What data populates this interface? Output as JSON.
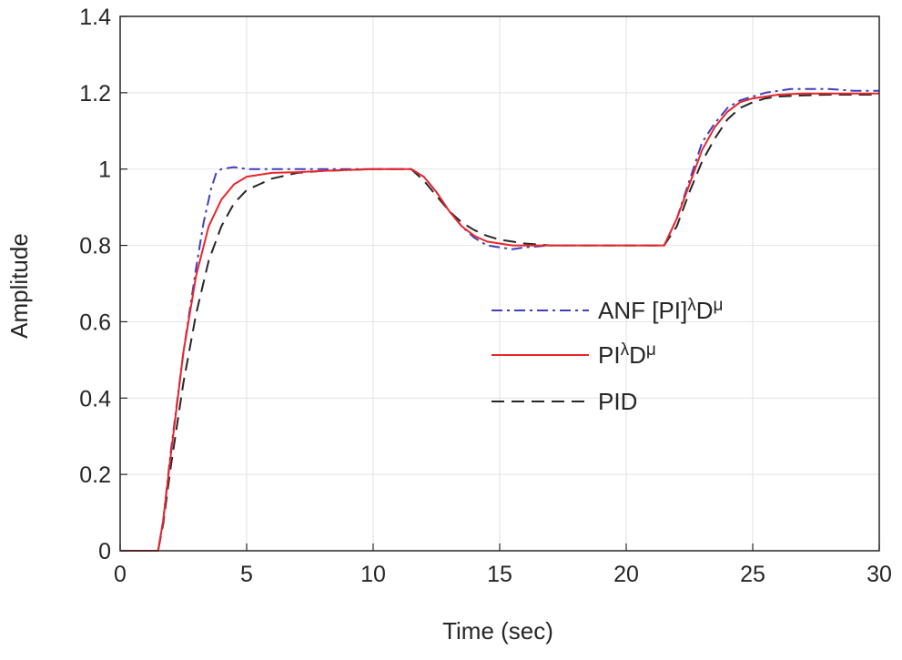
{
  "chart_data": {
    "type": "line",
    "title": "",
    "xlabel": "Time (sec)",
    "ylabel": "Amplitude",
    "xlim": [
      0,
      30
    ],
    "ylim": [
      0,
      1.4
    ],
    "xticks": [
      0,
      5,
      10,
      15,
      20,
      25,
      30
    ],
    "xtick_labels": [
      "0",
      "5",
      "10",
      "15",
      "20",
      "25",
      "30"
    ],
    "yticks": [
      0,
      0.2,
      0.4,
      0.6,
      0.8,
      1.0,
      1.2,
      1.4
    ],
    "ytick_labels": [
      "0",
      "0.2",
      "0.4",
      "0.6",
      "0.8",
      "1",
      "1.2",
      "1.4"
    ],
    "grid": true,
    "legend_position": "center-right",
    "series": [
      {
        "name": "ANF [PI]λDμ",
        "legend": {
          "base": "ANF [PI]",
          "sup1": "λ",
          "mid": "D",
          "sup2": "μ"
        },
        "color": "#3f3fbf",
        "style": "dashdot",
        "x": [
          0,
          1.0,
          1.5,
          1.7,
          2.0,
          2.5,
          3.0,
          3.3,
          3.6,
          3.8,
          4.0,
          4.5,
          5.0,
          6.0,
          8.0,
          10.0,
          11.2,
          11.5,
          12.0,
          12.5,
          13.0,
          13.5,
          14.0,
          14.5,
          15.0,
          15.5,
          16.0,
          17.0,
          18.0,
          19.0,
          20.0,
          21.0,
          21.5,
          22.0,
          22.3,
          22.5,
          23.0,
          23.5,
          24.0,
          24.5,
          25.0,
          25.5,
          26.0,
          26.5,
          27.0,
          28.0,
          29.0,
          30.0
        ],
        "y": [
          0,
          0,
          0.0,
          0.08,
          0.26,
          0.52,
          0.74,
          0.86,
          0.95,
          0.99,
          1.0,
          1.005,
          1.0,
          1.0,
          1.0,
          1.0,
          1.0,
          1.0,
          0.98,
          0.94,
          0.89,
          0.85,
          0.82,
          0.8,
          0.795,
          0.79,
          0.795,
          0.8,
          0.8,
          0.8,
          0.8,
          0.8,
          0.8,
          0.87,
          0.93,
          0.97,
          1.07,
          1.12,
          1.16,
          1.18,
          1.19,
          1.2,
          1.205,
          1.21,
          1.21,
          1.21,
          1.205,
          1.205
        ]
      },
      {
        "name": "PIλDμ",
        "legend": {
          "base": "PI",
          "sup1": "λ",
          "mid": "D",
          "sup2": "μ"
        },
        "color": "#e8262b",
        "style": "solid",
        "x": [
          0,
          1.0,
          1.5,
          1.7,
          2.0,
          2.5,
          3.0,
          3.5,
          4.0,
          4.5,
          5.0,
          6.0,
          7.0,
          8.0,
          10.0,
          11.2,
          11.5,
          12.0,
          12.5,
          13.0,
          13.5,
          14.0,
          14.5,
          15.0,
          15.5,
          16.0,
          17.0,
          18.0,
          19.0,
          20.0,
          21.0,
          21.5,
          22.0,
          22.5,
          23.0,
          23.5,
          24.0,
          24.5,
          25.0,
          25.5,
          26.0,
          27.0,
          28.0,
          29.0,
          30.0
        ],
        "y": [
          0,
          0,
          0.0,
          0.08,
          0.25,
          0.52,
          0.72,
          0.85,
          0.92,
          0.96,
          0.98,
          0.99,
          0.992,
          0.995,
          1.0,
          1.0,
          1.0,
          0.98,
          0.94,
          0.89,
          0.85,
          0.825,
          0.81,
          0.805,
          0.8,
          0.8,
          0.8,
          0.8,
          0.8,
          0.8,
          0.8,
          0.8,
          0.87,
          0.96,
          1.05,
          1.11,
          1.15,
          1.175,
          1.185,
          1.19,
          1.195,
          1.198,
          1.198,
          1.198,
          1.198
        ]
      },
      {
        "name": "PID",
        "legend": {
          "base": "PID",
          "sup1": "",
          "mid": "",
          "sup2": ""
        },
        "color": "#262626",
        "style": "dashed",
        "x": [
          0,
          1.0,
          1.5,
          1.7,
          2.0,
          2.5,
          3.0,
          3.5,
          4.0,
          4.5,
          5.0,
          5.5,
          6.0,
          7.0,
          8.0,
          10.0,
          11.2,
          11.5,
          12.0,
          12.5,
          13.0,
          13.5,
          14.0,
          14.5,
          15.0,
          16.0,
          17.0,
          18.0,
          19.0,
          20.0,
          21.0,
          21.5,
          22.0,
          22.5,
          23.0,
          23.5,
          24.0,
          24.5,
          25.0,
          25.5,
          26.0,
          27.0,
          28.0,
          29.0,
          30.0
        ],
        "y": [
          0,
          0,
          0.0,
          0.07,
          0.22,
          0.44,
          0.62,
          0.76,
          0.85,
          0.91,
          0.945,
          0.96,
          0.975,
          0.99,
          0.995,
          1.0,
          1.0,
          1.0,
          0.97,
          0.93,
          0.89,
          0.86,
          0.84,
          0.825,
          0.815,
          0.805,
          0.8,
          0.8,
          0.8,
          0.8,
          0.8,
          0.8,
          0.85,
          0.94,
          1.02,
          1.08,
          1.13,
          1.16,
          1.175,
          1.185,
          1.19,
          1.193,
          1.195,
          1.195,
          1.195
        ]
      }
    ]
  }
}
